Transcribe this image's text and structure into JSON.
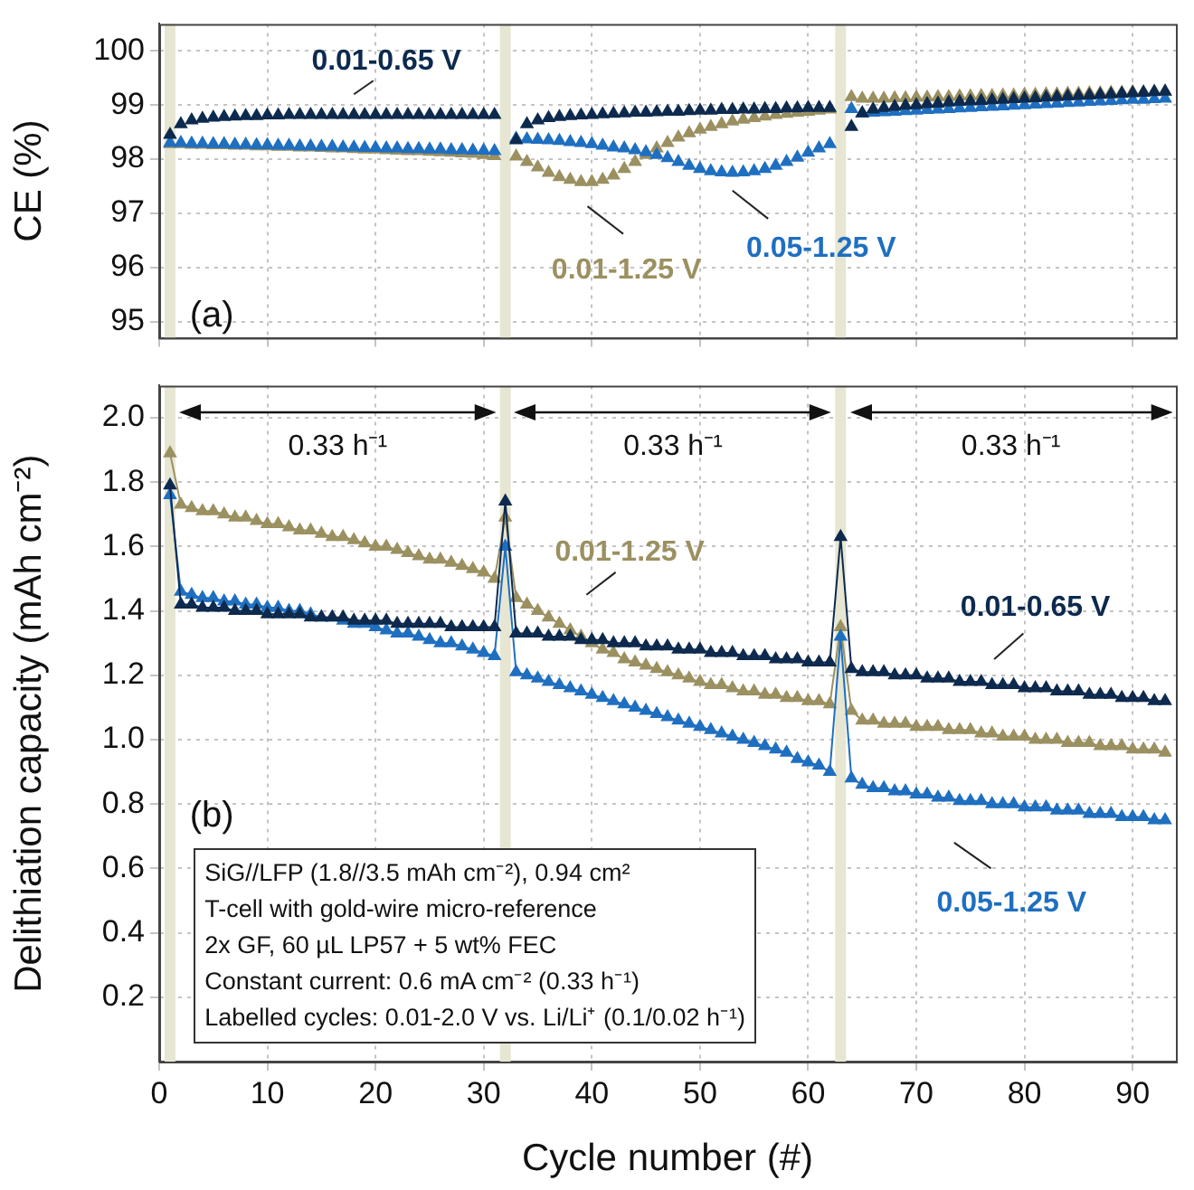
{
  "chart_data": [
    {
      "type": "scatter",
      "ylabel": "CE (%)",
      "marker": "triangle",
      "grid": true,
      "tick_labels": "y",
      "annotations": [
        "(a)"
      ],
      "x": [
        1,
        2,
        3,
        4,
        5,
        6,
        7,
        8,
        9,
        10,
        11,
        12,
        13,
        14,
        15,
        16,
        17,
        18,
        19,
        20,
        21,
        22,
        23,
        24,
        25,
        26,
        27,
        28,
        29,
        30,
        31,
        32,
        33,
        34,
        35,
        36,
        37,
        38,
        39,
        40,
        41,
        42,
        43,
        44,
        45,
        46,
        47,
        48,
        49,
        50,
        51,
        52,
        53,
        54,
        55,
        56,
        57,
        58,
        59,
        60,
        61,
        62,
        63,
        64,
        65,
        66,
        67,
        68,
        69,
        70,
        71,
        72,
        73,
        74,
        75,
        76,
        77,
        78,
        79,
        80,
        81,
        82,
        83,
        84,
        85,
        86,
        87,
        88,
        89,
        90,
        91,
        92,
        93
      ],
      "xlim": [
        0,
        94
      ],
      "xticks": [
        0,
        10,
        20,
        30,
        40,
        50,
        60,
        70,
        80,
        90
      ],
      "ylim": [
        94.7,
        100.5
      ],
      "yticks": [
        95,
        96,
        97,
        98,
        99,
        100
      ],
      "bands": [
        {
          "axis": "x",
          "from": 0.5,
          "to": 1.5,
          "color": "#e6e6d2"
        },
        {
          "axis": "x",
          "from": 31.5,
          "to": 32.5,
          "color": "#e6e6d2"
        },
        {
          "axis": "x",
          "from": 62.5,
          "to": 63.5,
          "color": "#e6e6d2"
        }
      ],
      "series": [
        {
          "name": "0.01-0.65 V",
          "color": "#0d2a4e",
          "values": [
            98.45,
            98.65,
            98.72,
            98.75,
            98.77,
            98.78,
            98.79,
            98.8,
            98.8,
            98.81,
            98.81,
            98.82,
            98.82,
            98.82,
            98.82,
            98.82,
            98.82,
            98.82,
            98.82,
            98.82,
            98.82,
            98.82,
            98.82,
            98.82,
            98.82,
            98.82,
            98.82,
            98.82,
            98.82,
            98.82,
            98.82,
            null,
            98.35,
            98.65,
            98.72,
            98.76,
            98.78,
            98.8,
            98.81,
            98.82,
            98.83,
            98.84,
            98.85,
            98.86,
            98.86,
            98.87,
            98.88,
            98.88,
            98.89,
            98.9,
            98.9,
            98.91,
            98.91,
            98.92,
            98.92,
            98.93,
            98.93,
            98.94,
            98.94,
            98.95,
            98.95,
            98.95,
            null,
            98.6,
            98.85,
            98.92,
            98.95,
            98.97,
            98.99,
            99.0,
            99.02,
            99.03,
            99.05,
            99.06,
            99.07,
            99.08,
            99.09,
            99.1,
            99.11,
            99.12,
            99.13,
            99.14,
            99.15,
            99.16,
            99.17,
            99.18,
            99.19,
            99.2,
            99.21,
            99.22,
            99.23,
            99.24,
            99.25
          ]
        },
        {
          "name": "0.05-1.25 V",
          "color": "#1f6fc0",
          "values": [
            98.3,
            98.3,
            98.29,
            98.29,
            98.28,
            98.28,
            98.27,
            98.27,
            98.26,
            98.26,
            98.25,
            98.25,
            98.24,
            98.24,
            98.23,
            98.23,
            98.22,
            98.22,
            98.21,
            98.21,
            98.2,
            98.2,
            98.19,
            98.19,
            98.18,
            98.18,
            98.17,
            98.17,
            98.16,
            98.16,
            98.15,
            null,
            98.38,
            98.37,
            98.36,
            98.35,
            98.34,
            98.32,
            98.3,
            98.28,
            98.25,
            98.22,
            98.2,
            98.17,
            98.13,
            98.08,
            98.02,
            97.95,
            97.88,
            97.82,
            97.78,
            97.76,
            97.75,
            97.76,
            97.78,
            97.82,
            97.88,
            97.95,
            98.03,
            98.12,
            98.2,
            98.28,
            null,
            98.93,
            98.85,
            98.86,
            98.87,
            98.88,
            98.89,
            98.9,
            98.91,
            98.92,
            98.93,
            98.94,
            98.95,
            98.96,
            98.97,
            98.98,
            98.99,
            99.0,
            99.01,
            99.02,
            99.03,
            99.04,
            99.05,
            99.06,
            99.07,
            99.08,
            99.09,
            99.1,
            99.1,
            99.11,
            99.12
          ]
        },
        {
          "name": "0.01-1.25 V",
          "color": "#9b9060",
          "values": [
            98.28,
            98.28,
            98.27,
            98.27,
            98.26,
            98.26,
            98.25,
            98.25,
            98.24,
            98.24,
            98.23,
            98.23,
            98.22,
            98.22,
            98.21,
            98.2,
            98.2,
            98.19,
            98.18,
            98.18,
            98.17,
            98.16,
            98.15,
            98.15,
            98.14,
            98.13,
            98.12,
            98.11,
            98.1,
            98.08,
            98.06,
            null,
            98.05,
            97.95,
            97.85,
            97.75,
            97.67,
            97.62,
            97.58,
            97.58,
            97.62,
            97.7,
            97.82,
            97.95,
            98.08,
            98.2,
            98.3,
            98.4,
            98.48,
            98.55,
            98.6,
            98.65,
            98.7,
            98.73,
            98.76,
            98.79,
            98.82,
            98.84,
            98.86,
            98.88,
            98.9,
            98.92,
            null,
            99.15,
            99.12,
            99.12,
            99.12,
            99.13,
            99.13,
            99.14,
            99.14,
            99.15,
            99.15,
            99.16,
            99.16,
            99.17,
            99.17,
            99.18,
            99.18,
            99.19,
            99.19,
            99.2,
            99.2,
            99.21,
            99.21,
            99.22,
            99.22,
            99.23,
            99.23,
            99.24,
            99.24,
            99.25,
            99.25
          ]
        }
      ]
    },
    {
      "type": "line",
      "xlabel": "Cycle number (#)",
      "ylabel": "Delithiation capacity (mAh cm⁻²)",
      "marker": "triangle",
      "grid": true,
      "annotations": [
        "(b)",
        "0.33 h⁻¹",
        "0.33 h⁻¹",
        "0.33 h⁻¹",
        "SiG//LFP (1.8//3.5 mAh cm⁻²), 0.94 cm²",
        "T-cell with gold-wire micro-reference",
        "2x GF, 60 µL LP57 + 5 wt% FEC",
        "Constant current: 0.6 mA cm⁻² (0.33 h⁻¹)",
        "Labelled cycles: 0.01-2.0 V vs. Li/Li⁺ (0.1/0.02 h⁻¹)"
      ],
      "x": [
        1,
        2,
        3,
        4,
        5,
        6,
        7,
        8,
        9,
        10,
        11,
        12,
        13,
        14,
        15,
        16,
        17,
        18,
        19,
        20,
        21,
        22,
        23,
        24,
        25,
        26,
        27,
        28,
        29,
        30,
        31,
        32,
        33,
        34,
        35,
        36,
        37,
        38,
        39,
        40,
        41,
        42,
        43,
        44,
        45,
        46,
        47,
        48,
        49,
        50,
        51,
        52,
        53,
        54,
        55,
        56,
        57,
        58,
        59,
        60,
        61,
        62,
        63,
        64,
        65,
        66,
        67,
        68,
        69,
        70,
        71,
        72,
        73,
        74,
        75,
        76,
        77,
        78,
        79,
        80,
        81,
        82,
        83,
        84,
        85,
        86,
        87,
        88,
        89,
        90,
        91,
        92,
        93
      ],
      "xlim": [
        0,
        94
      ],
      "xticks": [
        0,
        10,
        20,
        30,
        40,
        50,
        60,
        70,
        80,
        90
      ],
      "ylim": [
        0,
        2.1
      ],
      "yticks": [
        0.2,
        0.4,
        0.6,
        0.8,
        {
          "value": 1,
          "label": "1.0"
        },
        1.2,
        1.4,
        1.6,
        1.8,
        {
          "value": 2,
          "label": "2.0"
        }
      ],
      "bands": [
        {
          "axis": "x",
          "from": 0.5,
          "to": 1.5,
          "color": "#e6e6d2"
        },
        {
          "axis": "x",
          "from": 31.5,
          "to": 32.5,
          "color": "#e6e6d2"
        },
        {
          "axis": "x",
          "from": 62.5,
          "to": 63.5,
          "color": "#e6e6d2"
        }
      ],
      "series": [
        {
          "name": "0.01-0.65 V",
          "color": "#0d2a4e",
          "values": [
            1.79,
            1.42,
            1.42,
            1.41,
            1.41,
            1.41,
            1.4,
            1.4,
            1.4,
            1.39,
            1.39,
            1.39,
            1.39,
            1.38,
            1.38,
            1.38,
            1.38,
            1.37,
            1.37,
            1.37,
            1.37,
            1.36,
            1.36,
            1.36,
            1.36,
            1.36,
            1.35,
            1.35,
            1.35,
            1.35,
            1.35,
            1.74,
            1.33,
            1.33,
            1.33,
            1.32,
            1.32,
            1.32,
            1.31,
            1.31,
            1.31,
            1.3,
            1.3,
            1.3,
            1.29,
            1.29,
            1.29,
            1.28,
            1.28,
            1.28,
            1.27,
            1.27,
            1.27,
            1.26,
            1.26,
            1.26,
            1.25,
            1.25,
            1.25,
            1.24,
            1.24,
            1.24,
            1.63,
            1.22,
            1.21,
            1.21,
            1.21,
            1.2,
            1.2,
            1.2,
            1.19,
            1.19,
            1.19,
            1.18,
            1.18,
            1.18,
            1.17,
            1.17,
            1.17,
            1.16,
            1.16,
            1.16,
            1.15,
            1.15,
            1.15,
            1.14,
            1.14,
            1.14,
            1.13,
            1.13,
            1.13,
            1.12,
            1.12
          ]
        },
        {
          "name": "0.05-1.25 V",
          "color": "#1f6fc0",
          "values": [
            1.76,
            1.46,
            1.45,
            1.44,
            1.44,
            1.43,
            1.43,
            1.42,
            1.42,
            1.41,
            1.41,
            1.4,
            1.4,
            1.39,
            1.38,
            1.38,
            1.37,
            1.36,
            1.36,
            1.35,
            1.34,
            1.33,
            1.33,
            1.32,
            1.31,
            1.3,
            1.3,
            1.29,
            1.28,
            1.27,
            1.26,
            1.6,
            1.21,
            1.2,
            1.19,
            1.18,
            1.17,
            1.16,
            1.15,
            1.14,
            1.13,
            1.12,
            1.11,
            1.1,
            1.09,
            1.08,
            1.07,
            1.06,
            1.05,
            1.04,
            1.03,
            1.02,
            1.01,
            1.0,
            0.99,
            0.98,
            0.97,
            0.96,
            0.94,
            0.93,
            0.92,
            0.9,
            1.32,
            0.88,
            0.86,
            0.85,
            0.85,
            0.84,
            0.84,
            0.83,
            0.83,
            0.82,
            0.82,
            0.81,
            0.81,
            0.81,
            0.8,
            0.8,
            0.8,
            0.79,
            0.79,
            0.79,
            0.78,
            0.78,
            0.78,
            0.77,
            0.77,
            0.77,
            0.76,
            0.76,
            0.76,
            0.75,
            0.75
          ]
        },
        {
          "name": "0.01-1.25 V",
          "color": "#9b9060",
          "values": [
            1.89,
            1.73,
            1.72,
            1.71,
            1.71,
            1.7,
            1.69,
            1.69,
            1.68,
            1.67,
            1.67,
            1.66,
            1.65,
            1.65,
            1.64,
            1.63,
            1.63,
            1.62,
            1.61,
            1.6,
            1.6,
            1.59,
            1.58,
            1.57,
            1.56,
            1.56,
            1.55,
            1.54,
            1.53,
            1.52,
            1.5,
            1.69,
            1.44,
            1.42,
            1.4,
            1.38,
            1.36,
            1.34,
            1.32,
            1.3,
            1.28,
            1.27,
            1.25,
            1.24,
            1.23,
            1.22,
            1.21,
            1.2,
            1.19,
            1.18,
            1.17,
            1.17,
            1.16,
            1.15,
            1.15,
            1.14,
            1.14,
            1.13,
            1.13,
            1.12,
            1.12,
            1.11,
            1.35,
            1.09,
            1.06,
            1.06,
            1.05,
            1.05,
            1.05,
            1.04,
            1.04,
            1.04,
            1.03,
            1.03,
            1.03,
            1.02,
            1.02,
            1.01,
            1.01,
            1.01,
            1.0,
            1.0,
            1.0,
            0.99,
            0.99,
            0.99,
            0.98,
            0.98,
            0.98,
            0.97,
            0.97,
            0.97,
            0.96
          ]
        }
      ]
    }
  ]
}
